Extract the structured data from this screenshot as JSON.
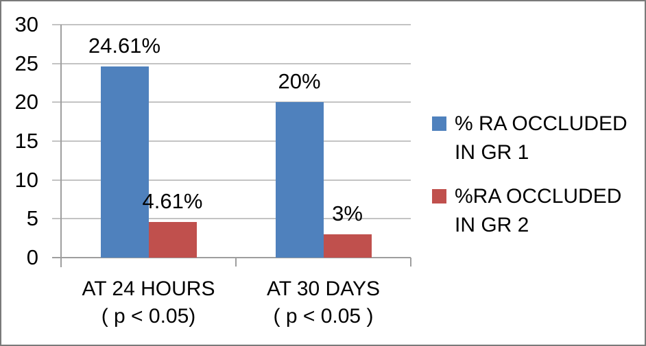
{
  "chart_data": {
    "type": "bar",
    "title": "",
    "xlabel": "",
    "ylabel": "",
    "ylim": [
      0,
      30
    ],
    "yticks": [
      0,
      5,
      10,
      15,
      20,
      25,
      30
    ],
    "grid": true,
    "legend_position": "right",
    "categories": [
      {
        "label": "AT 24 HOURS ( p < 0.05)",
        "label_lines": [
          "AT 24 HOURS",
          "( p < 0.05)"
        ]
      },
      {
        "label": "AT 30 DAYS ( p < 0.05 )",
        "label_lines": [
          "AT 30 DAYS",
          "( p < 0.05 )"
        ]
      }
    ],
    "series": [
      {
        "name": "% RA OCCLUDED IN GR 1",
        "name_lines": [
          "% RA OCCLUDED",
          "IN GR 1"
        ],
        "color": "#4f81bd",
        "values": [
          24.61,
          20
        ],
        "value_labels": [
          "24.61%",
          "20%"
        ]
      },
      {
        "name": "%RA OCCLUDED IN GR 2",
        "name_lines": [
          "%RA OCCLUDED",
          "IN GR 2"
        ],
        "color": "#c0504d",
        "values": [
          4.61,
          3
        ],
        "value_labels": [
          "4.61%",
          "3%"
        ]
      }
    ]
  },
  "colors": {
    "series_blue": "#4f81bd",
    "series_red": "#c0504d",
    "gridline": "#c3c3c3",
    "axis": "#9e9e9e",
    "text": "#000000",
    "frame_border": "#7a7a7a",
    "background": "#ffffff"
  }
}
